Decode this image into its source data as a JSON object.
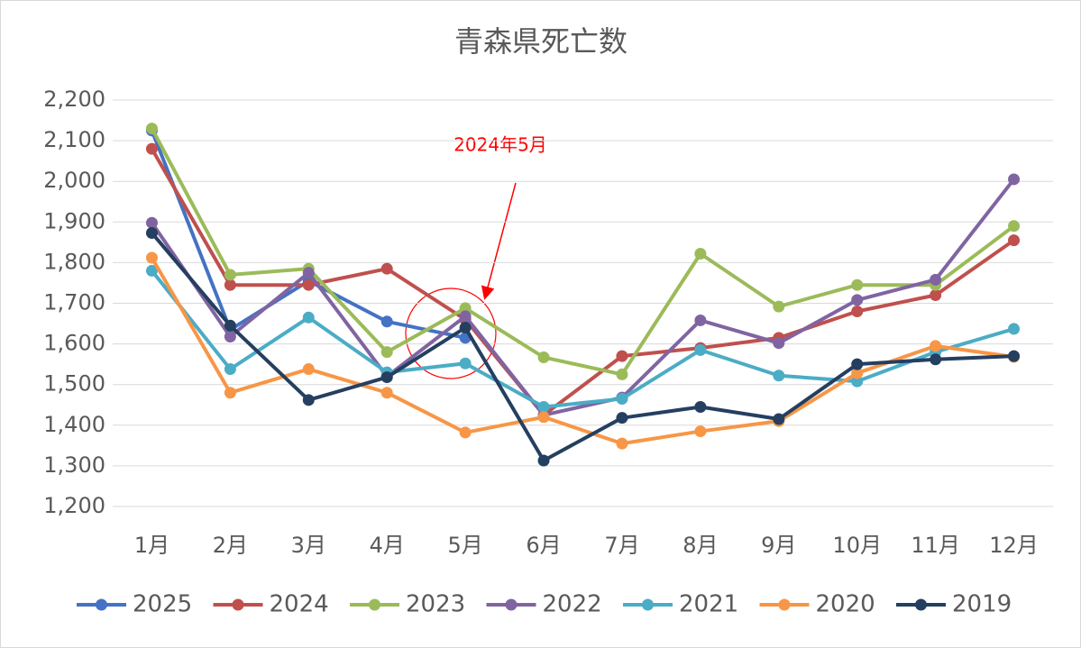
{
  "chart_data": {
    "type": "line",
    "title": "青森県死亡数",
    "categories": [
      "1月",
      "2月",
      "3月",
      "4月",
      "5月",
      "6月",
      "7月",
      "8月",
      "9月",
      "10月",
      "11月",
      "12月"
    ],
    "ylim": [
      1200,
      2200
    ],
    "yticks": [
      {
        "value": 1200,
        "label": "1,200"
      },
      {
        "value": 1300,
        "label": "1,300"
      },
      {
        "value": 1400,
        "label": "1,400"
      },
      {
        "value": 1500,
        "label": "1,500"
      },
      {
        "value": 1600,
        "label": "1,600"
      },
      {
        "value": 1700,
        "label": "1,700"
      },
      {
        "value": 1800,
        "label": "1,800"
      },
      {
        "value": 1900,
        "label": "1,900"
      },
      {
        "value": 2000,
        "label": "2,000"
      },
      {
        "value": 2100,
        "label": "2,100"
      },
      {
        "value": 2200,
        "label": "2,200"
      }
    ],
    "grid": true,
    "legend": "bottom",
    "annotation": "2024年5月",
    "series": [
      {
        "name": "2025",
        "color": "#4472c4",
        "values": [
          2125,
          1635,
          1755,
          1655,
          1615,
          null,
          null,
          null,
          null,
          null,
          null,
          null
        ]
      },
      {
        "name": "2024",
        "color": "#c0504d",
        "values": [
          2080,
          1745,
          1745,
          1785,
          1660,
          1425,
          1570,
          1590,
          1615,
          1680,
          1720,
          1855
        ]
      },
      {
        "name": "2023",
        "color": "#9bbb59",
        "values": [
          2130,
          1770,
          1785,
          1580,
          1688,
          1567,
          1525,
          1822,
          1692,
          1745,
          1745,
          1890
        ]
      },
      {
        "name": "2022",
        "color": "#8064a2",
        "values": [
          1898,
          1618,
          1775,
          1520,
          1668,
          1425,
          1468,
          1658,
          1602,
          1708,
          1758,
          2005
        ]
      },
      {
        "name": "2021",
        "color": "#4bacc6",
        "values": [
          1780,
          1538,
          1665,
          1530,
          1552,
          1445,
          1465,
          1585,
          1522,
          1508,
          1580,
          1637
        ]
      },
      {
        "name": "2020",
        "color": "#f79646",
        "values": [
          1812,
          1480,
          1538,
          1480,
          1382,
          1420,
          1355,
          1385,
          1410,
          1528,
          1595,
          1568
        ]
      },
      {
        "name": "2019",
        "color": "#243f60",
        "values": [
          1873,
          1645,
          1462,
          1518,
          1640,
          1313,
          1418,
          1445,
          1415,
          1550,
          1562,
          1570
        ]
      }
    ]
  }
}
